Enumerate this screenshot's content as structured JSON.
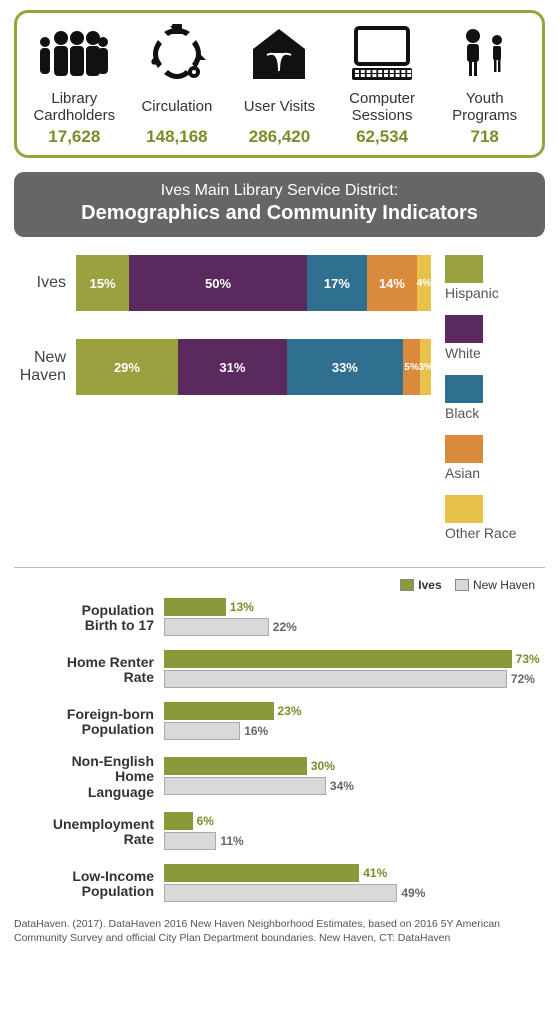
{
  "colors": {
    "olive": "#9aa23f",
    "olive_dark": "#7f8a2a",
    "banner": "#666666",
    "hispanic": "#9aa23f",
    "white": "#5a2a5e",
    "black": "#2f6f8f",
    "asian": "#d98a3a",
    "other": "#e6c24a",
    "ives_bar": "#8a9a3a",
    "nh_bar": "#d9d9d9",
    "nh_border": "#aaaaaa"
  },
  "stats": [
    {
      "key": "cardholders",
      "label": "Library\nCardholders",
      "value": "17,628"
    },
    {
      "key": "circulation",
      "label": "Circulation",
      "value": "148,168"
    },
    {
      "key": "visits",
      "label": "User Visits",
      "value": "286,420"
    },
    {
      "key": "sessions",
      "label": "Computer\nSessions",
      "value": "62,534"
    },
    {
      "key": "youth",
      "label": "Youth\nPrograms",
      "value": "718"
    }
  ],
  "title": {
    "line1": "Ives Main Library Service District:",
    "line2": "Demographics and Community Indicators"
  },
  "demographics": {
    "categories": [
      "Hispanic",
      "White",
      "Black",
      "Asian",
      "Other Race"
    ],
    "series": [
      {
        "name": "Ives",
        "values": [
          15,
          50,
          17,
          14,
          4
        ]
      },
      {
        "name": "New\nHaven",
        "values": [
          29,
          31,
          33,
          5,
          3
        ]
      }
    ]
  },
  "indicators": {
    "max": 80,
    "legend": {
      "a": "Ives",
      "b": "New Haven"
    },
    "rows": [
      {
        "label": "Population\nBirth to 17",
        "ives": 13,
        "nh": 22
      },
      {
        "label": "Home Renter\nRate",
        "ives": 73,
        "nh": 72
      },
      {
        "label": "Foreign-born\nPopulation",
        "ives": 23,
        "nh": 16
      },
      {
        "label": "Non-English\nHome\nLanguage",
        "ives": 30,
        "nh": 34
      },
      {
        "label": "Unemployment\nRate",
        "ives": 6,
        "nh": 11
      },
      {
        "label": "Low-Income\nPopulation",
        "ives": 41,
        "nh": 49
      }
    ]
  },
  "source": "DataHaven. (2017). DataHaven 2016 New Haven Neighborhood Estimates, based on 2016 5Y American Community Survey and official City Plan Department boundaries. New Haven, CT: DataHaven"
}
